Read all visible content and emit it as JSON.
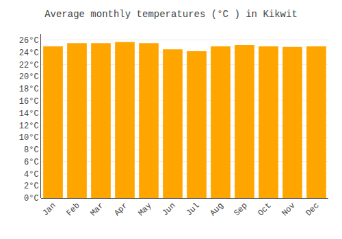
{
  "chart_data": {
    "type": "bar",
    "title": "Average monthly temperatures (°C ) in Kikwit",
    "categories": [
      "Jan",
      "Feb",
      "Mar",
      "Apr",
      "May",
      "Jun",
      "Jul",
      "Aug",
      "Sep",
      "Oct",
      "Nov",
      "Dec"
    ],
    "values": [
      25.0,
      25.5,
      25.5,
      25.7,
      25.5,
      24.5,
      24.2,
      25.0,
      25.2,
      25.0,
      24.9,
      25.0
    ],
    "color": "#FFA500",
    "ylim": [
      0,
      27
    ],
    "yticks": [
      {
        "value": 0,
        "label": "0°C"
      },
      {
        "value": 2,
        "label": "2°C"
      },
      {
        "value": 4,
        "label": "4°C"
      },
      {
        "value": 6,
        "label": "6°C"
      },
      {
        "value": 8,
        "label": "8°C"
      },
      {
        "value": 10,
        "label": "10°C"
      },
      {
        "value": 12,
        "label": "12°C"
      },
      {
        "value": 14,
        "label": "14°C"
      },
      {
        "value": 16,
        "label": "16°C"
      },
      {
        "value": 18,
        "label": "18°C"
      },
      {
        "value": 20,
        "label": "20°C"
      },
      {
        "value": 22,
        "label": "22°C"
      },
      {
        "value": 24,
        "label": "24°C"
      },
      {
        "value": 26,
        "label": "26°C"
      }
    ],
    "grid": true
  }
}
